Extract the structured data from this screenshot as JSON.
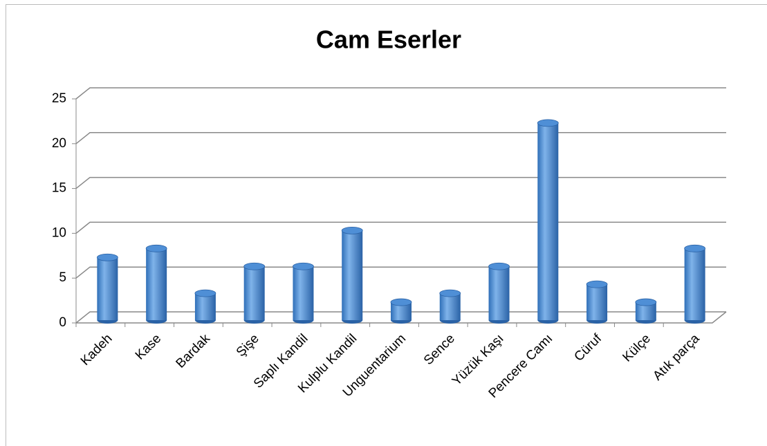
{
  "chart_data": {
    "type": "bar",
    "title": "Cam Eserler",
    "categories": [
      "Kadeh",
      "Kase",
      "Bardak",
      "Şişe",
      "Saplı Kandil",
      "Kulplu Kandil",
      "Unguentarium",
      "Sence",
      "Yüzük Kaşı",
      "Pencere Camı",
      "Cüruf",
      "Külçe",
      "Atık parça"
    ],
    "values": [
      7,
      8,
      3,
      6,
      6,
      10,
      2,
      3,
      6,
      22,
      4,
      2,
      8
    ],
    "color": "#4f8fd6",
    "ylim": [
      0,
      25
    ],
    "yticks": [
      0,
      5,
      10,
      15,
      20,
      25
    ],
    "grid": true
  }
}
